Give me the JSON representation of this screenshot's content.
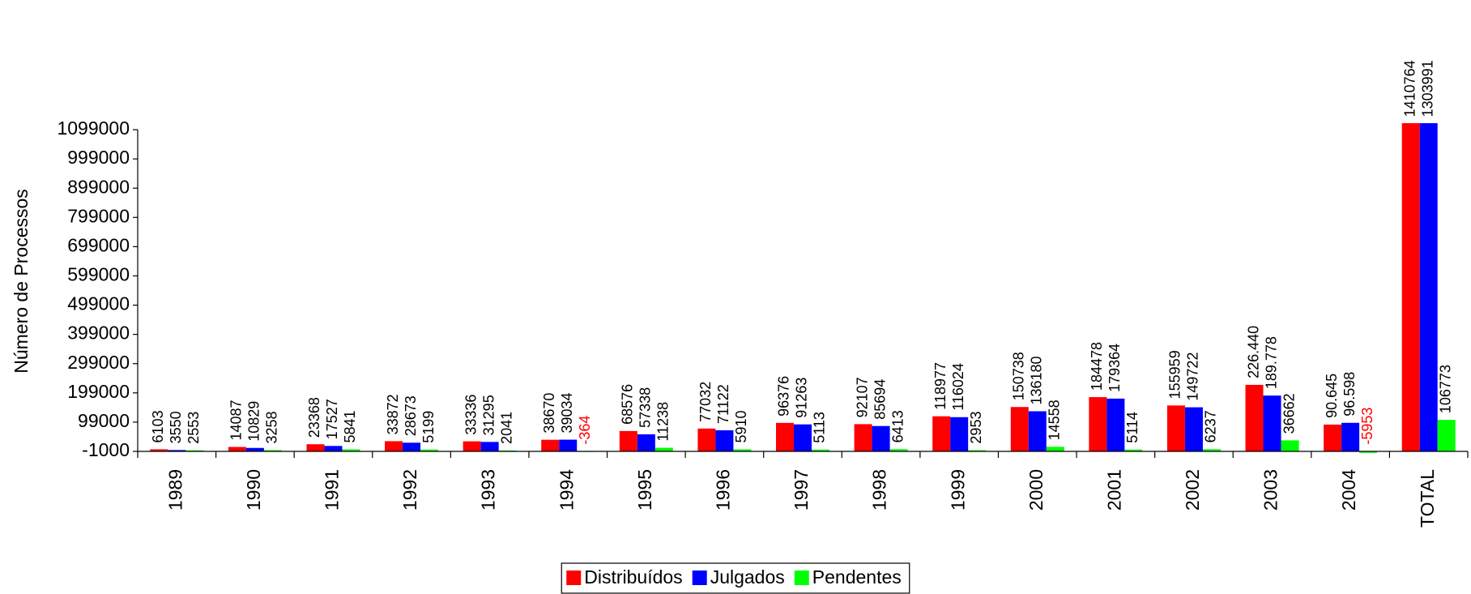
{
  "chart_data": {
    "type": "bar",
    "y_label": "Número de Processos",
    "categories": [
      "1989",
      "1990",
      "1991",
      "1992",
      "1993",
      "1994",
      "1995",
      "1996",
      "1997",
      "1998",
      "1999",
      "2000",
      "2001",
      "2002",
      "2003",
      "2004",
      "TOTAL"
    ],
    "series": [
      {
        "name": "Distribuídos",
        "color": "#ff0000",
        "values": [
          6103,
          14087,
          23368,
          33872,
          33336,
          38670,
          68576,
          77032,
          96376,
          92107,
          118977,
          150738,
          184478,
          155959,
          226440,
          90645,
          1410764
        ],
        "value_labels": [
          "6103",
          "14087",
          "23368",
          "33872",
          "33336",
          "38670",
          "68576",
          "77032",
          "96376",
          "92107",
          "118977",
          "150738",
          "184478",
          "155959",
          "226.440",
          "90.645",
          "1410764"
        ]
      },
      {
        "name": "Julgados",
        "color": "#0000ff",
        "values": [
          3550,
          10829,
          17527,
          28673,
          31295,
          39034,
          57338,
          71122,
          91263,
          85694,
          116024,
          136180,
          179364,
          149722,
          189778,
          96598,
          1303991
        ],
        "value_labels": [
          "3550",
          "10829",
          "17527",
          "28673",
          "31295",
          "39034",
          "57338",
          "71122",
          "91263",
          "85694",
          "116024",
          "136180",
          "179364",
          "149722",
          "189.778",
          "96.598",
          "1303991"
        ]
      },
      {
        "name": "Pendentes",
        "color": "#00ff00",
        "values": [
          2553,
          3258,
          5841,
          5199,
          2041,
          -364,
          11238,
          5910,
          5113,
          6413,
          2953,
          14558,
          5114,
          6237,
          36662,
          -5953,
          106773
        ]
      }
    ],
    "negative_label_color": "#ff0000",
    "ylim": [
      -1000,
      1120000
    ],
    "yticks": [
      -1000,
      99000,
      199000,
      299000,
      399000,
      499000,
      599000,
      699000,
      799000,
      899000,
      999000,
      1099000
    ],
    "grid": false,
    "legend": "bottom"
  }
}
